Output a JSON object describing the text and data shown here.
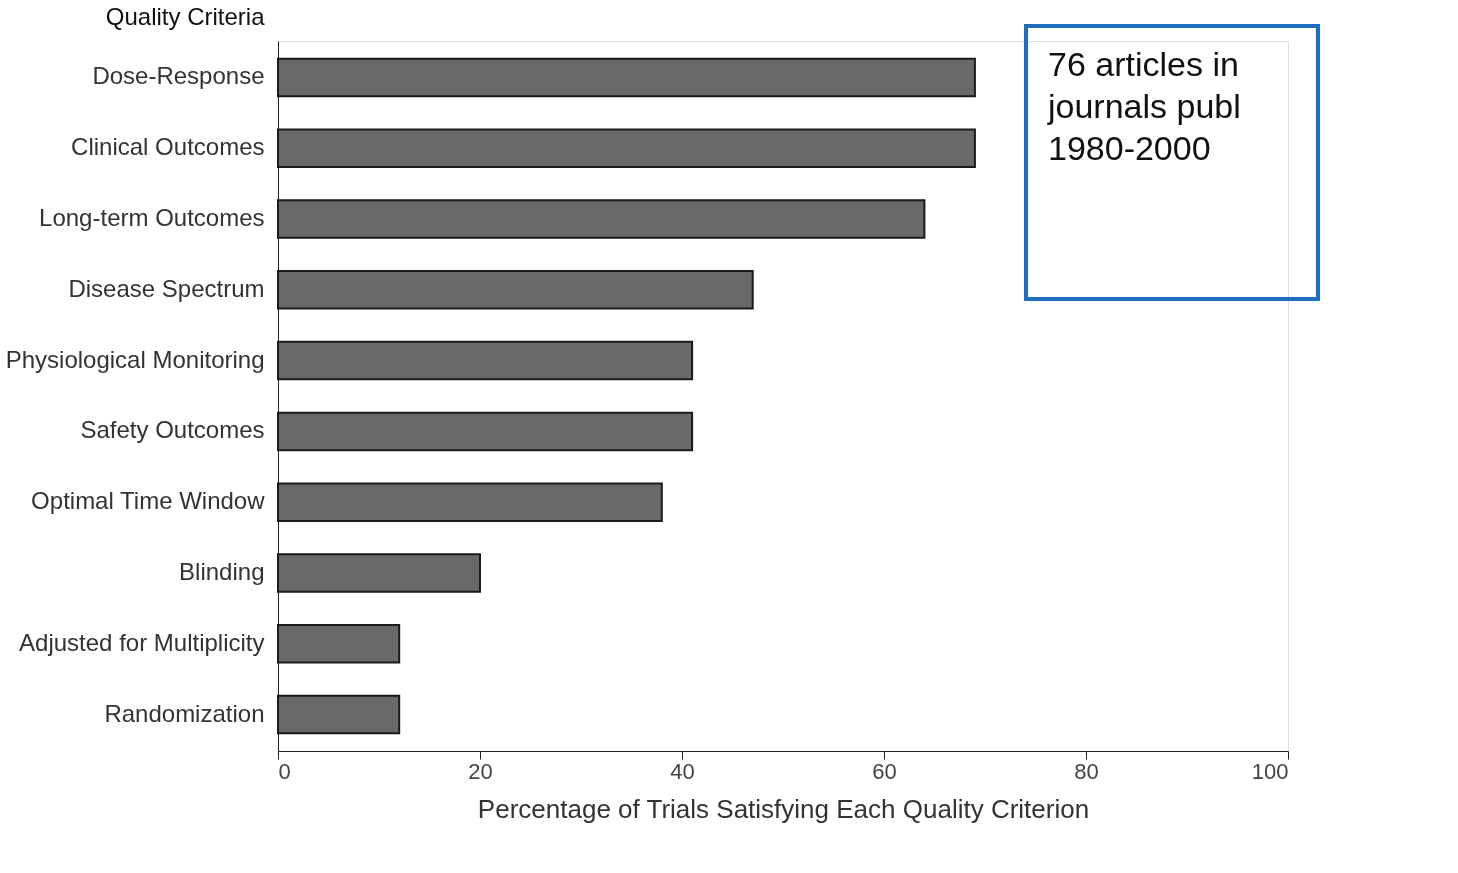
{
  "chart_data": {
    "type": "bar",
    "orientation": "horizontal",
    "ylabel": "Quality Criteria",
    "xlabel": "Percentage of Trials Satisfying Each Quality Criterion",
    "categories": [
      "Dose-Response",
      "Clinical Outcomes",
      "Long-term Outcomes",
      "Disease Spectrum",
      "Physiological Monitoring",
      "Safety Outcomes",
      "Optimal Time Window",
      "Blinding",
      "Adjusted for Multiplicity",
      "Randomization"
    ],
    "values": [
      69,
      69,
      64,
      47,
      41,
      41,
      38,
      20,
      12,
      12
    ],
    "color": "#69696c",
    "xlim": [
      0,
      100
    ],
    "xticks": [
      0,
      20,
      40,
      60,
      80,
      100
    ],
    "grid": false,
    "annotations": [
      "76 articles in\njournals publ\n1980-2000"
    ]
  }
}
